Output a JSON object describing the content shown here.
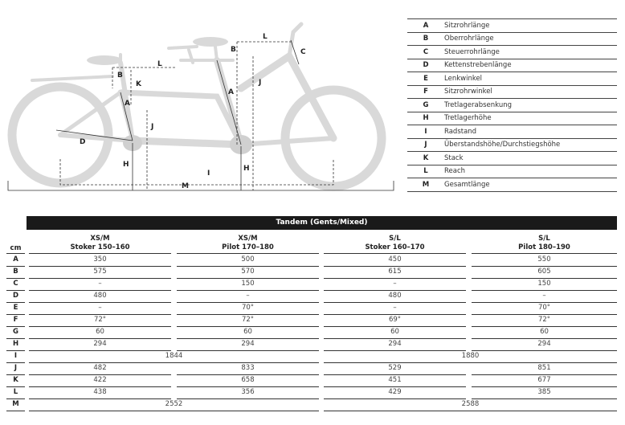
{
  "diagram": {
    "labels": [
      "A",
      "B",
      "C",
      "D",
      "H",
      "I",
      "J",
      "K",
      "L",
      "M"
    ]
  },
  "legend": [
    {
      "key": "A",
      "label": "Sitzrohrlänge"
    },
    {
      "key": "B",
      "label": "Oberrohrlänge"
    },
    {
      "key": "C",
      "label": "Steuerrohrlänge"
    },
    {
      "key": "D",
      "label": "Kettenstrebenlänge"
    },
    {
      "key": "E",
      "label": "Lenkwinkel"
    },
    {
      "key": "F",
      "label": "Sitzrohrwinkel"
    },
    {
      "key": "G",
      "label": "Tretlagerabsenkung"
    },
    {
      "key": "H",
      "label": "Tretlagerhöhe"
    },
    {
      "key": "I",
      "label": "Radstand"
    },
    {
      "key": "J",
      "label": "Überstandshöhe/Durchstiegshöhe"
    },
    {
      "key": "K",
      "label": "Stack"
    },
    {
      "key": "L",
      "label": "Reach"
    },
    {
      "key": "M",
      "label": "Gesamtlänge"
    }
  ],
  "table": {
    "title": "Tandem (Gents/Mixed)",
    "unit": "cm",
    "columns": [
      {
        "size": "XS/M",
        "rider": "Stoker 150–160"
      },
      {
        "size": "XS/M",
        "rider": "Pilot 170–180"
      },
      {
        "size": "S/L",
        "rider": "Stoker 160–170"
      },
      {
        "size": "S/L",
        "rider": "Pilot 180–190"
      }
    ],
    "rows": [
      {
        "key": "A",
        "values": [
          "350",
          "500",
          "450",
          "550"
        ]
      },
      {
        "key": "B",
        "values": [
          "575",
          "570",
          "615",
          "605"
        ]
      },
      {
        "key": "C",
        "values": [
          "–",
          "150",
          "–",
          "150"
        ]
      },
      {
        "key": "D",
        "values": [
          "480",
          "–",
          "480",
          "–"
        ]
      },
      {
        "key": "E",
        "values": [
          "–",
          "70°",
          "–",
          "70°"
        ]
      },
      {
        "key": "F",
        "values": [
          "72°",
          "72°",
          "69°",
          "72°"
        ]
      },
      {
        "key": "G",
        "values": [
          "60",
          "60",
          "60",
          "60"
        ]
      },
      {
        "key": "H",
        "values": [
          "294",
          "294",
          "294",
          "294"
        ]
      },
      {
        "key": "I",
        "values": [
          "1844",
          "1880"
        ]
      },
      {
        "key": "J",
        "values": [
          "482",
          "833",
          "529",
          "851"
        ]
      },
      {
        "key": "K",
        "values": [
          "422",
          "658",
          "451",
          "677"
        ]
      },
      {
        "key": "L",
        "values": [
          "438",
          "356",
          "429",
          "385"
        ]
      },
      {
        "key": "M",
        "values": [
          "2552",
          "2588"
        ]
      }
    ]
  }
}
